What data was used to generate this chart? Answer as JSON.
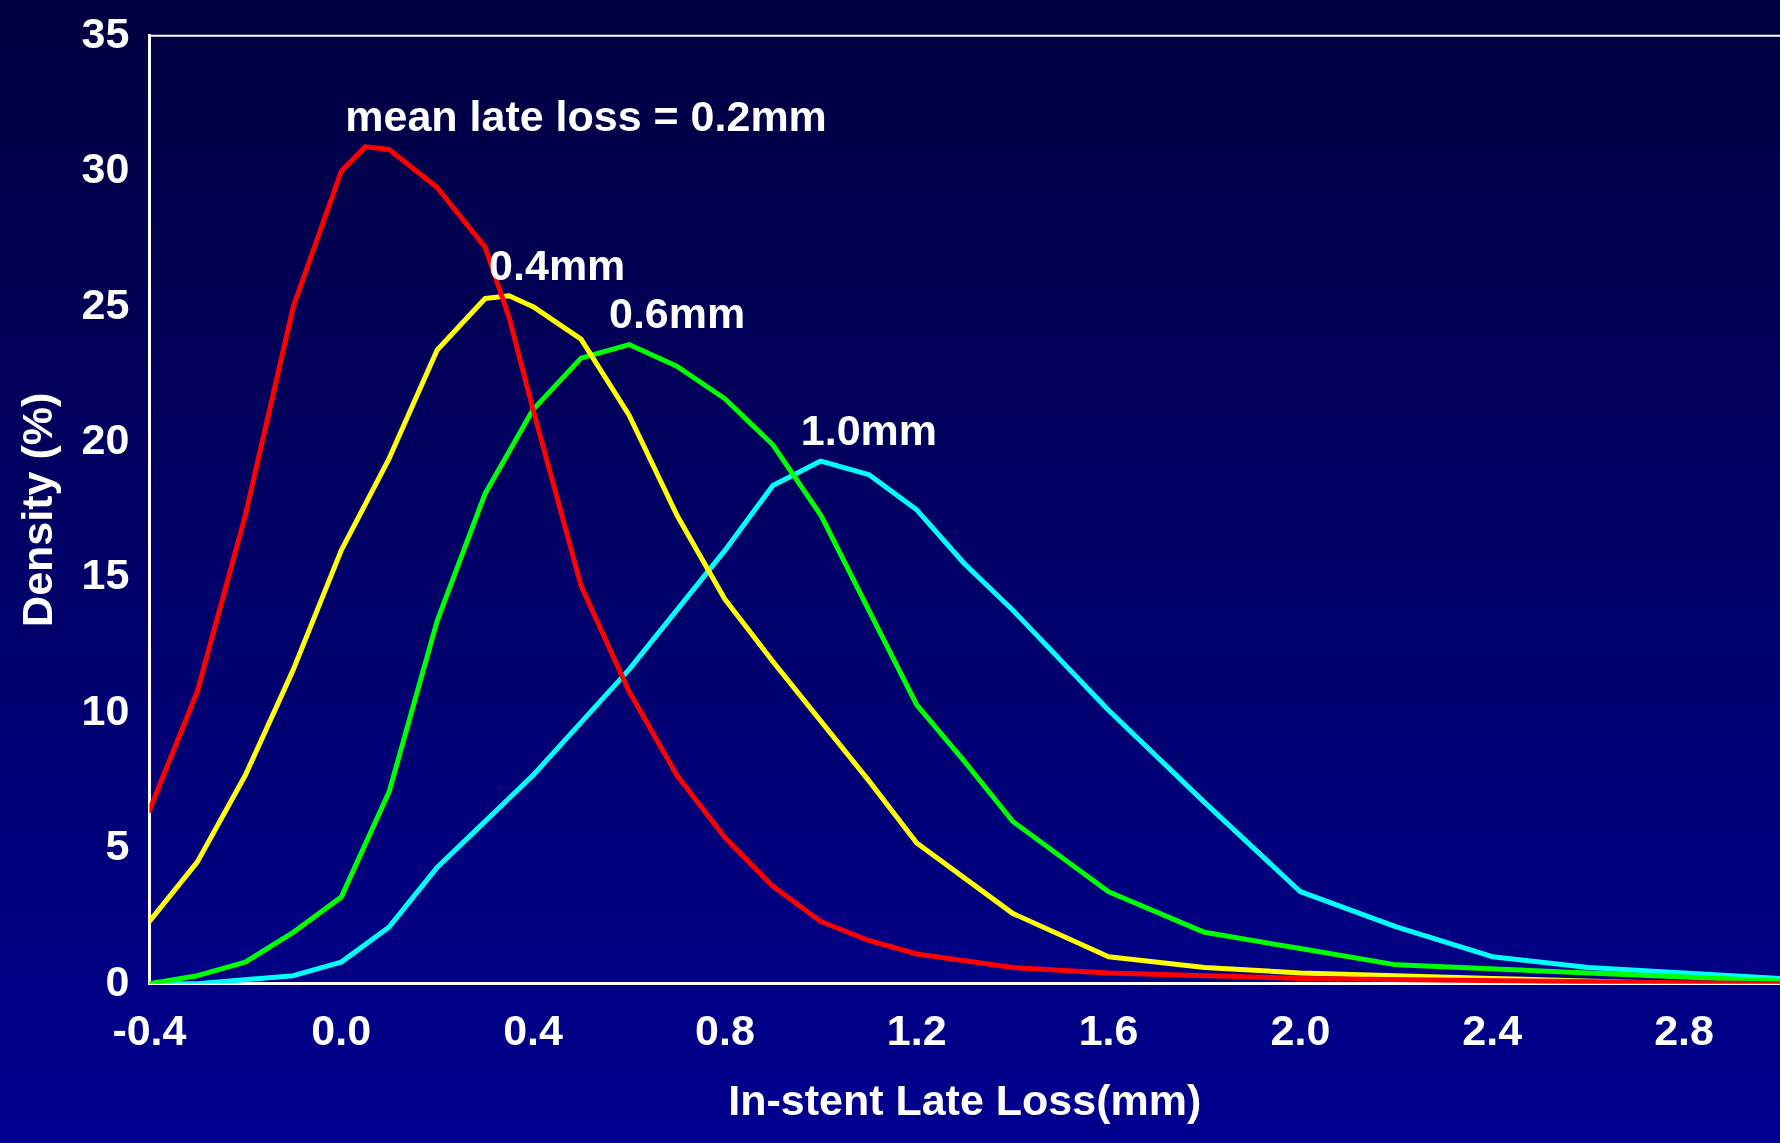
{
  "chart_data": {
    "type": "line",
    "xlabel": "In-stent Late Loss(mm)",
    "ylabel": "Density (%)",
    "xlim": [
      -0.4,
      3.0
    ],
    "xticks": [
      -0.4,
      {
        "value": 0,
        "label": "0.0"
      },
      0.4,
      0.8,
      1.2,
      1.6,
      {
        "value": 2,
        "label": "2.0"
      },
      2.4,
      2.8
    ],
    "ylim": [
      0,
      35
    ],
    "yticks": [
      0,
      5,
      10,
      15,
      20,
      25,
      30,
      35
    ],
    "grid": false,
    "legend": false,
    "marker": "none",
    "line_style": "solid",
    "series": [
      {
        "color": "#ff0000",
        "x": [
          -0.4,
          -0.3,
          -0.2,
          -0.1,
          0.0,
          0.05,
          0.1,
          0.2,
          0.3,
          0.35,
          0.4,
          0.5,
          0.6,
          0.7,
          0.8,
          0.9,
          1.0,
          1.1,
          1.2,
          1.4,
          1.6,
          2.0,
          3.0
        ],
        "values": [
          6.4,
          10.8,
          17.3,
          25,
          30,
          30.9,
          30.8,
          29.4,
          27.2,
          24.6,
          21.2,
          14.7,
          10.8,
          7.7,
          5.4,
          3.6,
          2.3,
          1.6,
          1.1,
          0.6,
          0.4,
          0.2,
          0
        ]
      },
      {
        "color": "#ffff00",
        "x": [
          -0.4,
          -0.3,
          -0.2,
          -0.1,
          0.0,
          0.1,
          0.2,
          0.3,
          0.35,
          0.4,
          0.5,
          0.6,
          0.7,
          0.8,
          0.9,
          1.0,
          1.1,
          1.2,
          1.4,
          1.6,
          1.8,
          2.0,
          2.4,
          2.8,
          3.0
        ],
        "values": [
          2.3,
          4.5,
          7.7,
          11.6,
          16,
          19.4,
          23.4,
          25.3,
          25.4,
          25,
          23.8,
          21,
          17.3,
          14.2,
          11.9,
          9.7,
          7.5,
          5.2,
          2.6,
          1,
          0.6,
          0.4,
          0.2,
          0,
          0
        ]
      },
      {
        "color": "#00ff00",
        "x": [
          -0.4,
          -0.3,
          -0.2,
          -0.1,
          0.0,
          0.1,
          0.2,
          0.3,
          0.4,
          0.5,
          0.6,
          0.7,
          0.8,
          0.9,
          1.0,
          1.1,
          1.2,
          1.3,
          1.4,
          1.6,
          1.8,
          2.0,
          2.2,
          2.6,
          3.0
        ],
        "values": [
          0,
          0.3,
          0.8,
          1.9,
          3.2,
          7.1,
          13.4,
          18.1,
          21.2,
          23.1,
          23.6,
          22.8,
          21.6,
          19.9,
          17.3,
          13.8,
          10.3,
          8.2,
          6,
          3.4,
          1.9,
          1.3,
          0.7,
          0.4,
          0.1
        ]
      },
      {
        "color": "#00ffff",
        "x": [
          -0.4,
          -0.3,
          -0.1,
          0.0,
          0.1,
          0.2,
          0.4,
          0.6,
          0.8,
          0.9,
          1.0,
          1.1,
          1.2,
          1.3,
          1.4,
          1.6,
          1.8,
          2.0,
          2.2,
          2.4,
          2.6,
          3.0
        ],
        "values": [
          0,
          0,
          0.3,
          0.8,
          2.1,
          4.3,
          7.7,
          11.6,
          16,
          18.4,
          19.3,
          18.8,
          17.5,
          15.5,
          13.8,
          10.1,
          6.7,
          3.4,
          2.1,
          1,
          0.6,
          0.2
        ]
      }
    ],
    "annotations": [
      "mean late loss = 0.2mm",
      "0.4mm",
      "0.6mm",
      "1.0mm"
    ]
  }
}
